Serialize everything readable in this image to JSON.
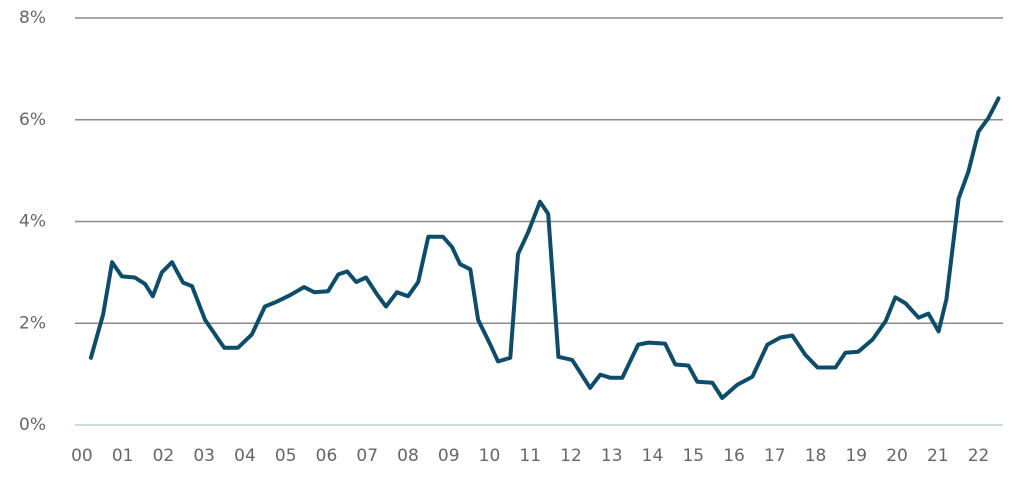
{
  "chart_data": {
    "type": "line",
    "x": [
      0.22,
      0.52,
      0.74,
      0.98,
      1.3,
      1.55,
      1.74,
      1.96,
      2.21,
      2.48,
      2.7,
      3.02,
      3.49,
      3.83,
      4.17,
      4.49,
      4.74,
      5.1,
      5.45,
      5.7,
      6.04,
      6.29,
      6.51,
      6.73,
      6.97,
      7.24,
      7.46,
      7.73,
      8.0,
      8.25,
      8.5,
      8.86,
      9.08,
      9.28,
      9.53,
      9.72,
      10.02,
      10.21,
      10.51,
      10.7,
      10.95,
      11.24,
      11.44,
      11.69,
      12.03,
      12.47,
      12.72,
      12.96,
      13.26,
      13.65,
      13.9,
      14.31,
      14.56,
      14.88,
      15.1,
      15.47,
      15.71,
      16.08,
      16.45,
      16.82,
      17.14,
      17.43,
      17.75,
      18.05,
      18.49,
      18.73,
      19.05,
      19.4,
      19.72,
      19.96,
      20.21,
      20.53,
      20.77,
      21.02,
      21.21,
      21.51,
      21.75,
      22.0,
      22.24,
      22.49
    ],
    "series": [
      {
        "color": "#0d4c6a",
        "values": [
          1.32,
          2.17,
          3.2,
          2.92,
          2.9,
          2.77,
          2.53,
          3.0,
          3.2,
          2.8,
          2.73,
          2.07,
          1.52,
          1.52,
          1.78,
          2.33,
          2.41,
          2.55,
          2.71,
          2.61,
          2.63,
          2.96,
          3.02,
          2.81,
          2.9,
          2.57,
          2.33,
          2.61,
          2.53,
          2.81,
          3.7,
          3.7,
          3.5,
          3.16,
          3.06,
          2.07,
          1.58,
          1.25,
          1.32,
          3.36,
          3.79,
          4.39,
          4.15,
          1.34,
          1.28,
          0.73,
          0.99,
          0.93,
          0.93,
          1.58,
          1.62,
          1.6,
          1.19,
          1.17,
          0.85,
          0.83,
          0.53,
          0.79,
          0.95,
          1.58,
          1.72,
          1.76,
          1.38,
          1.13,
          1.13,
          1.42,
          1.44,
          1.68,
          2.04,
          2.51,
          2.39,
          2.11,
          2.19,
          1.84,
          2.47,
          4.45,
          4.98,
          5.77,
          6.03,
          6.42
        ]
      }
    ],
    "xlim": [
      -0.17,
      22.6
    ],
    "xticks": [
      {
        "value": 0,
        "label": "00"
      },
      {
        "value": 1,
        "label": "01"
      },
      {
        "value": 2,
        "label": "02"
      },
      {
        "value": 3,
        "label": "03"
      },
      {
        "value": 4,
        "label": "04"
      },
      {
        "value": 5,
        "label": "05"
      },
      {
        "value": 6,
        "label": "06"
      },
      {
        "value": 7,
        "label": "07"
      },
      {
        "value": 8,
        "label": "08"
      },
      {
        "value": 9,
        "label": "09"
      },
      10,
      11,
      12,
      13,
      14,
      15,
      16,
      17,
      18,
      19,
      20,
      21,
      22
    ],
    "ylim": [
      0,
      8
    ],
    "yticks": [
      {
        "value": 0,
        "label": "0%"
      },
      {
        "value": 2,
        "label": "2%"
      },
      {
        "value": 4,
        "label": "4%"
      },
      {
        "value": 6,
        "label": "6%"
      },
      {
        "value": 8,
        "label": "8%"
      }
    ],
    "grid": true
  }
}
